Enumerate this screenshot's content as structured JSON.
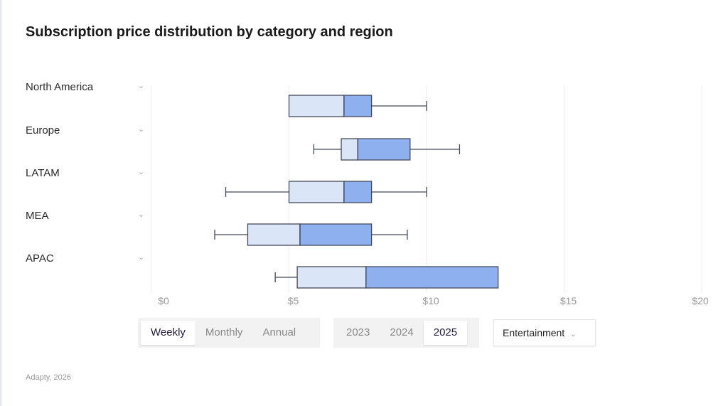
{
  "title": "Subscription price distribution by category and region",
  "footer": "Adapty, 2026",
  "colors": {
    "lower_box": "#dae6f8",
    "upper_box": "#8fb0ee",
    "stroke": "#444a5a",
    "grid": "#ececec"
  },
  "period_tabs": {
    "options": [
      "Weekly",
      "Monthly",
      "Annual"
    ],
    "selected": "Weekly"
  },
  "year_tabs": {
    "options": [
      "2023",
      "2024",
      "2025"
    ],
    "selected": "2025"
  },
  "category_select": {
    "value": "Entertainment",
    "icon": "chevron-down-icon"
  },
  "chart_data": {
    "type": "boxplot",
    "orientation": "horizontal",
    "title": "Subscription price distribution by category and region",
    "categories": [
      "North America",
      "Europe",
      "LATAM",
      "MEA",
      "APAC"
    ],
    "series": [
      {
        "category": "North America",
        "min": 5.0,
        "q1": 5.0,
        "median": 7.0,
        "q3": 8.0,
        "max": 10.0
      },
      {
        "category": "Europe",
        "min": 5.9,
        "q1": 6.9,
        "median": 7.5,
        "q3": 9.4,
        "max": 11.2
      },
      {
        "category": "LATAM",
        "min": 2.7,
        "q1": 5.0,
        "median": 7.0,
        "q3": 8.0,
        "max": 10.0
      },
      {
        "category": "MEA",
        "min": 2.3,
        "q1": 3.5,
        "median": 5.4,
        "q3": 8.0,
        "max": 9.3
      },
      {
        "category": "APAC",
        "min": 4.5,
        "q1": 5.3,
        "median": 7.8,
        "q3": 12.6,
        "max": 12.6
      }
    ],
    "xlim": [
      0,
      20
    ],
    "xticks": [
      0,
      5,
      10,
      15,
      20
    ],
    "xtick_labels": [
      "$0",
      "$5",
      "$10",
      "$15",
      "$20"
    ],
    "grid": true,
    "legend": "none"
  }
}
